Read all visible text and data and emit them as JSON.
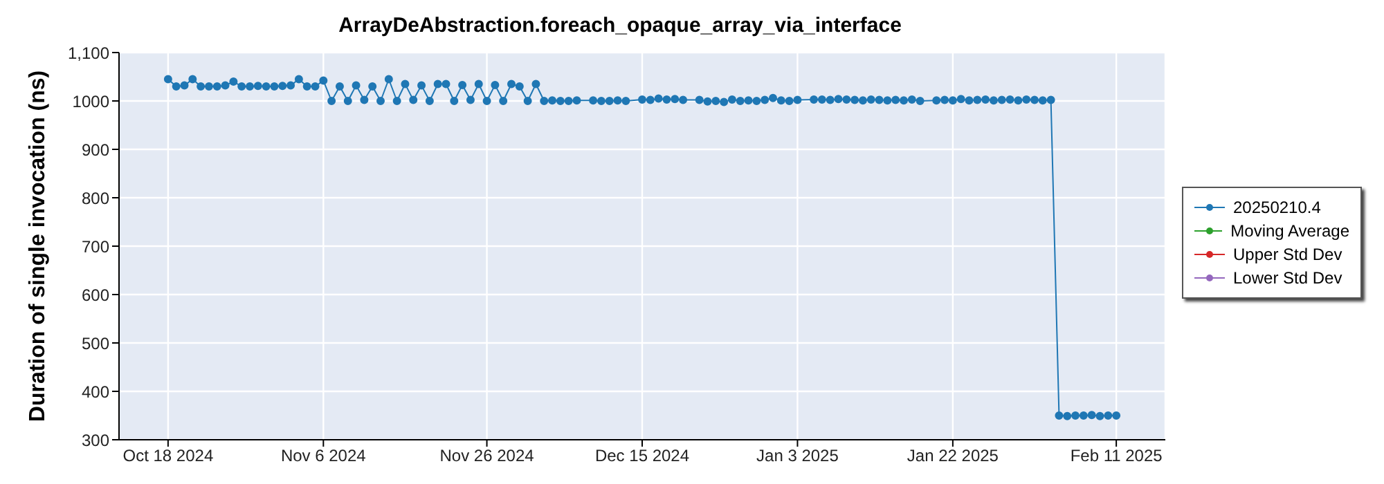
{
  "chart_data": {
    "type": "line",
    "title": "ArrayDeAbstraction.foreach_opaque_array_via_interface",
    "ylabel": "Duration of single invocation (ns)",
    "xlim": [
      "2024-10-12",
      "2025-02-17"
    ],
    "xticks": [
      {
        "value": "2024-10-18",
        "label": "Oct 18 2024"
      },
      {
        "value": "2024-11-06",
        "label": "Nov 6 2024"
      },
      {
        "value": "2024-11-26",
        "label": "Nov 26 2024"
      },
      {
        "value": "2024-12-15",
        "label": "Dec 15 2024"
      },
      {
        "value": "2025-01-03",
        "label": "Jan 3 2025"
      },
      {
        "value": "2025-01-22",
        "label": "Jan 22 2025"
      },
      {
        "value": "2025-02-11",
        "label": "Feb 11 2025"
      }
    ],
    "ylim": [
      300,
      1100
    ],
    "yticks": [
      300,
      400,
      500,
      600,
      700,
      800,
      900,
      1000,
      {
        "value": 1100,
        "label": "1,100"
      }
    ],
    "grid": true,
    "legend": "right",
    "marker": "circle",
    "line_style": "solid",
    "series": [
      {
        "name": "20250210.4",
        "color": "#1f77b4",
        "x": [
          "2024-10-18",
          "2024-10-19",
          "2024-10-20",
          "2024-10-21",
          "2024-10-22",
          "2024-10-23",
          "2024-10-24",
          "2024-10-25",
          "2024-10-26",
          "2024-10-27",
          "2024-10-28",
          "2024-10-29",
          "2024-10-30",
          "2024-10-31",
          "2024-11-01",
          "2024-11-02",
          "2024-11-03",
          "2024-11-04",
          "2024-11-05",
          "2024-11-06",
          "2024-11-07",
          "2024-11-08",
          "2024-11-09",
          "2024-11-10",
          "2024-11-11",
          "2024-11-12",
          "2024-11-13",
          "2024-11-14",
          "2024-11-15",
          "2024-11-16",
          "2024-11-17",
          "2024-11-18",
          "2024-11-19",
          "2024-11-20",
          "2024-11-21",
          "2024-11-22",
          "2024-11-23",
          "2024-11-24",
          "2024-11-25",
          "2024-11-26",
          "2024-11-27",
          "2024-11-28",
          "2024-11-29",
          "2024-11-30",
          "2024-12-01",
          "2024-12-02",
          "2024-12-03",
          "2024-12-04",
          "2024-12-05",
          "2024-12-06",
          "2024-12-07",
          "2024-12-09",
          "2024-12-10",
          "2024-12-11",
          "2024-12-12",
          "2024-12-13",
          "2024-12-15",
          "2024-12-16",
          "2024-12-17",
          "2024-12-18",
          "2024-12-19",
          "2024-12-20",
          "2024-12-22",
          "2024-12-23",
          "2024-12-24",
          "2024-12-25",
          "2024-12-26",
          "2024-12-27",
          "2024-12-28",
          "2024-12-29",
          "2024-12-30",
          "2024-12-31",
          "2025-01-01",
          "2025-01-02",
          "2025-01-03",
          "2025-01-05",
          "2025-01-06",
          "2025-01-07",
          "2025-01-08",
          "2025-01-09",
          "2025-01-10",
          "2025-01-11",
          "2025-01-12",
          "2025-01-13",
          "2025-01-14",
          "2025-01-15",
          "2025-01-16",
          "2025-01-17",
          "2025-01-18",
          "2025-01-20",
          "2025-01-21",
          "2025-01-22",
          "2025-01-23",
          "2025-01-24",
          "2025-01-25",
          "2025-01-26",
          "2025-01-27",
          "2025-01-28",
          "2025-01-29",
          "2025-01-30",
          "2025-01-31",
          "2025-02-01",
          "2025-02-02",
          "2025-02-03",
          "2025-02-04",
          "2025-02-05",
          "2025-02-06",
          "2025-02-07",
          "2025-02-08",
          "2025-02-09",
          "2025-02-10",
          "2025-02-11"
        ],
        "values": [
          1045,
          1030,
          1032,
          1045,
          1030,
          1030,
          1030,
          1032,
          1040,
          1030,
          1030,
          1031,
          1030,
          1030,
          1031,
          1032,
          1045,
          1030,
          1030,
          1042,
          1000,
          1030,
          1000,
          1032,
          1002,
          1030,
          1000,
          1045,
          1000,
          1035,
          1002,
          1032,
          1000,
          1035,
          1035,
          1000,
          1033,
          1002,
          1035,
          1000,
          1033,
          1000,
          1035,
          1030,
          1000,
          1035,
          1000,
          1001,
          1000,
          1000,
          1001,
          1001,
          1000,
          1000,
          1001,
          1000,
          1003,
          1002,
          1005,
          1003,
          1004,
          1002,
          1002,
          999,
          1000,
          998,
          1003,
          1000,
          1001,
          1000,
          1002,
          1006,
          1001,
          1000,
          1002,
          1003,
          1003,
          1002,
          1004,
          1003,
          1002,
          1001,
          1003,
          1002,
          1001,
          1002,
          1001,
          1003,
          1000,
          1001,
          1002,
          1001,
          1004,
          1001,
          1002,
          1003,
          1001,
          1002,
          1003,
          1001,
          1003,
          1002,
          1001,
          1002,
          350,
          349,
          350,
          350,
          351,
          349,
          350,
          350
        ]
      },
      {
        "name": "Moving Average",
        "color": "#2ca02c"
      },
      {
        "name": "Upper Std Dev",
        "color": "#d62728"
      },
      {
        "name": "Lower Std Dev",
        "color": "#9467bd"
      }
    ]
  }
}
